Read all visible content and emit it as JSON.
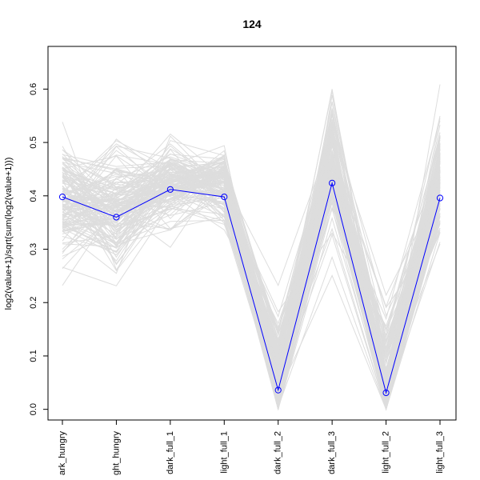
{
  "chart_data": {
    "type": "line",
    "title": "124",
    "xlabel": "",
    "ylabel": "log2(value+1)/sqrt(sum(log2(value+1)))",
    "categories": [
      "dark_hungry",
      "light_hungry",
      "dark_full_1",
      "light_full_1",
      "dark_full_2",
      "dark_full_3",
      "light_full_2",
      "light_full_3"
    ],
    "category_labels_visible": [
      "ark_hungry",
      "ght_hungry",
      "dark_full_1",
      "light_full_1",
      "dark_full_2",
      "dark_full_3",
      "light_full_2",
      "light_full_3"
    ],
    "ylim": [
      -0.02,
      0.68
    ],
    "yticks": [
      0.0,
      0.1,
      0.2,
      0.3,
      0.4,
      0.5,
      0.6
    ],
    "grid": false,
    "background_series": {
      "color": "#dddddd",
      "count": 150,
      "mean": [
        0.39,
        0.37,
        0.42,
        0.42,
        0.06,
        0.47,
        0.05,
        0.43
      ],
      "spread": [
        0.12,
        0.12,
        0.09,
        0.07,
        0.12,
        0.12,
        0.13,
        0.12
      ]
    },
    "series": [
      {
        "name": "",
        "color": "#0000ff",
        "marker": "open-circle",
        "values": [
          0.398,
          0.36,
          0.412,
          0.398,
          0.036,
          0.424,
          0.031,
          0.396
        ]
      }
    ]
  }
}
